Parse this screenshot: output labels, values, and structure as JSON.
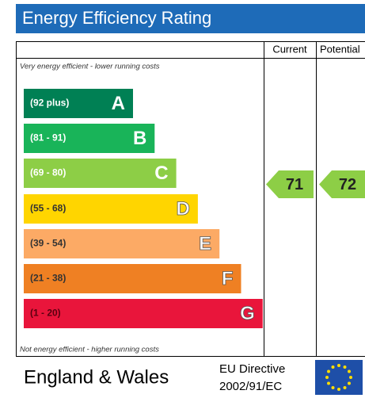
{
  "title": "Energy Efficiency Rating",
  "columns": [
    "Current",
    "Potential"
  ],
  "top_note": "Very energy efficient - lower running costs",
  "bottom_note": "Not energy efficient - higher running costs",
  "bands": [
    {
      "range": "(92 plus)",
      "letter": "A",
      "color": "#008054",
      "text_color": "#ffffff"
    },
    {
      "range": "(81 - 91)",
      "letter": "B",
      "color": "#19b459",
      "text_color": "#ffffff"
    },
    {
      "range": "(69 - 80)",
      "letter": "C",
      "color": "#8dce46",
      "text_color": "#ffffff"
    },
    {
      "range": "(55 - 68)",
      "letter": "D",
      "color": "#ffd500",
      "text_color": "#333333"
    },
    {
      "range": "(39 - 54)",
      "letter": "E",
      "color": "#fcaa65",
      "text_color": "#333333"
    },
    {
      "range": "(21 - 38)",
      "letter": "F",
      "color": "#ef8023",
      "text_color": "#333333"
    },
    {
      "range": "(1 - 20)",
      "letter": "G",
      "color": "#e9153b",
      "text_color": "#5a0010"
    }
  ],
  "current": {
    "value": 71,
    "color": "#8dce46"
  },
  "potential": {
    "value": 72,
    "color": "#8dce46"
  },
  "footer": {
    "region": "England & Wales",
    "directive_line1": "EU Directive",
    "directive_line2": "2002/91/EC"
  }
}
